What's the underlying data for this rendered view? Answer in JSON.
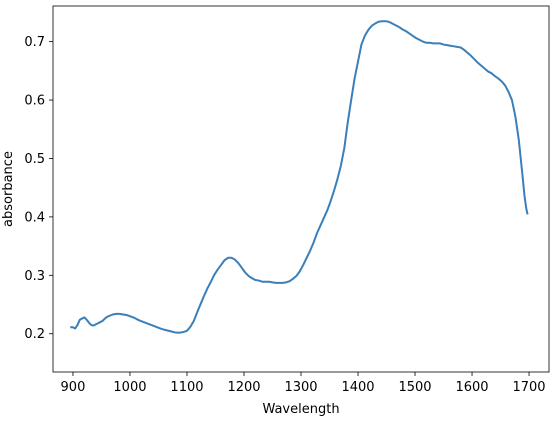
{
  "chart_data": {
    "type": "line",
    "title": "",
    "xlabel": "Wavelength",
    "ylabel": "absorbance",
    "xlim": [
      865,
      1735
    ],
    "ylim": [
      0.1345,
      0.761
    ],
    "xticks": [
      900,
      1000,
      1100,
      1200,
      1300,
      1400,
      1500,
      1600,
      1700
    ],
    "yticks": [
      0.2,
      0.3,
      0.4,
      0.5,
      0.6,
      0.7
    ],
    "xtick_labels": [
      "900",
      "1000",
      "1100",
      "1200",
      "1300",
      "1400",
      "1500",
      "1600",
      "1700"
    ],
    "ytick_labels": [
      "0.2",
      "0.3",
      "0.4",
      "0.5",
      "0.6",
      "0.7"
    ],
    "grid": false,
    "series": [
      {
        "color": "#3b7fb9",
        "points": [
          [
            897,
            0.211
          ],
          [
            900,
            0.211
          ],
          [
            904,
            0.209
          ],
          [
            908,
            0.215
          ],
          [
            912,
            0.224
          ],
          [
            916,
            0.226
          ],
          [
            920,
            0.228
          ],
          [
            924,
            0.224
          ],
          [
            928,
            0.219
          ],
          [
            932,
            0.215
          ],
          [
            936,
            0.214
          ],
          [
            940,
            0.216
          ],
          [
            944,
            0.218
          ],
          [
            948,
            0.22
          ],
          [
            952,
            0.222
          ],
          [
            956,
            0.226
          ],
          [
            960,
            0.229
          ],
          [
            965,
            0.231
          ],
          [
            970,
            0.233
          ],
          [
            976,
            0.234
          ],
          [
            982,
            0.234
          ],
          [
            988,
            0.233
          ],
          [
            994,
            0.232
          ],
          [
            1000,
            0.23
          ],
          [
            1008,
            0.227
          ],
          [
            1016,
            0.223
          ],
          [
            1024,
            0.22
          ],
          [
            1032,
            0.217
          ],
          [
            1040,
            0.214
          ],
          [
            1048,
            0.211
          ],
          [
            1056,
            0.208
          ],
          [
            1064,
            0.206
          ],
          [
            1072,
            0.204
          ],
          [
            1080,
            0.202
          ],
          [
            1088,
            0.202
          ],
          [
            1094,
            0.203
          ],
          [
            1100,
            0.205
          ],
          [
            1106,
            0.212
          ],
          [
            1112,
            0.222
          ],
          [
            1118,
            0.237
          ],
          [
            1124,
            0.251
          ],
          [
            1130,
            0.265
          ],
          [
            1136,
            0.278
          ],
          [
            1142,
            0.289
          ],
          [
            1148,
            0.301
          ],
          [
            1154,
            0.31
          ],
          [
            1160,
            0.318
          ],
          [
            1166,
            0.326
          ],
          [
            1172,
            0.33
          ],
          [
            1178,
            0.33
          ],
          [
            1184,
            0.327
          ],
          [
            1190,
            0.321
          ],
          [
            1196,
            0.313
          ],
          [
            1202,
            0.305
          ],
          [
            1208,
            0.299
          ],
          [
            1214,
            0.295
          ],
          [
            1220,
            0.292
          ],
          [
            1226,
            0.291
          ],
          [
            1232,
            0.289
          ],
          [
            1238,
            0.289
          ],
          [
            1244,
            0.289
          ],
          [
            1250,
            0.288
          ],
          [
            1256,
            0.287
          ],
          [
            1262,
            0.287
          ],
          [
            1268,
            0.287
          ],
          [
            1274,
            0.288
          ],
          [
            1280,
            0.29
          ],
          [
            1286,
            0.294
          ],
          [
            1292,
            0.299
          ],
          [
            1298,
            0.307
          ],
          [
            1304,
            0.318
          ],
          [
            1310,
            0.33
          ],
          [
            1316,
            0.342
          ],
          [
            1322,
            0.356
          ],
          [
            1328,
            0.372
          ],
          [
            1334,
            0.385
          ],
          [
            1340,
            0.398
          ],
          [
            1346,
            0.411
          ],
          [
            1352,
            0.427
          ],
          [
            1358,
            0.445
          ],
          [
            1364,
            0.465
          ],
          [
            1370,
            0.488
          ],
          [
            1376,
            0.518
          ],
          [
            1382,
            0.562
          ],
          [
            1388,
            0.6
          ],
          [
            1394,
            0.637
          ],
          [
            1400,
            0.666
          ],
          [
            1406,
            0.695
          ],
          [
            1412,
            0.71
          ],
          [
            1418,
            0.72
          ],
          [
            1424,
            0.727
          ],
          [
            1430,
            0.731
          ],
          [
            1436,
            0.734
          ],
          [
            1442,
            0.735
          ],
          [
            1448,
            0.735
          ],
          [
            1454,
            0.734
          ],
          [
            1460,
            0.731
          ],
          [
            1466,
            0.728
          ],
          [
            1472,
            0.725
          ],
          [
            1478,
            0.721
          ],
          [
            1484,
            0.718
          ],
          [
            1490,
            0.714
          ],
          [
            1496,
            0.71
          ],
          [
            1502,
            0.706
          ],
          [
            1508,
            0.703
          ],
          [
            1514,
            0.7
          ],
          [
            1520,
            0.698
          ],
          [
            1526,
            0.698
          ],
          [
            1532,
            0.697
          ],
          [
            1538,
            0.697
          ],
          [
            1544,
            0.697
          ],
          [
            1550,
            0.695
          ],
          [
            1556,
            0.694
          ],
          [
            1562,
            0.693
          ],
          [
            1568,
            0.692
          ],
          [
            1574,
            0.691
          ],
          [
            1580,
            0.69
          ],
          [
            1586,
            0.686
          ],
          [
            1592,
            0.681
          ],
          [
            1598,
            0.676
          ],
          [
            1604,
            0.67
          ],
          [
            1610,
            0.664
          ],
          [
            1616,
            0.659
          ],
          [
            1622,
            0.654
          ],
          [
            1628,
            0.649
          ],
          [
            1634,
            0.646
          ],
          [
            1640,
            0.641
          ],
          [
            1646,
            0.637
          ],
          [
            1652,
            0.632
          ],
          [
            1658,
            0.625
          ],
          [
            1664,
            0.614
          ],
          [
            1670,
            0.6
          ],
          [
            1676,
            0.572
          ],
          [
            1682,
            0.532
          ],
          [
            1688,
            0.476
          ],
          [
            1692,
            0.436
          ],
          [
            1695,
            0.415
          ],
          [
            1697,
            0.406
          ]
        ]
      }
    ]
  }
}
